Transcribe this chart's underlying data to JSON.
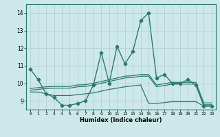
{
  "title": "",
  "xlabel": "Humidex (Indice chaleur)",
  "bg_color": "#cce8e8",
  "grid_color": "#b0cccc",
  "line_color": "#2a7a6a",
  "xlim": [
    -0.5,
    23.5
  ],
  "ylim": [
    8.5,
    14.5
  ],
  "yticks": [
    9,
    10,
    11,
    12,
    13,
    14
  ],
  "xticks": [
    0,
    1,
    2,
    3,
    4,
    5,
    6,
    7,
    8,
    9,
    10,
    11,
    12,
    13,
    14,
    15,
    16,
    17,
    18,
    19,
    20,
    21,
    22,
    23
  ],
  "lines": [
    {
      "x": [
        0,
        1,
        2,
        3,
        4,
        5,
        6,
        7,
        8,
        9,
        10,
        11,
        12,
        13,
        14,
        15,
        16,
        17,
        18,
        19,
        20,
        21,
        22,
        23
      ],
      "y": [
        10.8,
        10.2,
        9.4,
        9.2,
        8.75,
        8.75,
        8.85,
        9.0,
        9.9,
        11.75,
        10.0,
        12.1,
        11.1,
        11.8,
        13.55,
        14.0,
        10.3,
        10.5,
        10.0,
        10.0,
        10.2,
        9.9,
        8.7,
        8.7
      ],
      "marker": "D",
      "markersize": 2.5,
      "linewidth": 1.0
    },
    {
      "x": [
        0,
        1,
        2,
        3,
        4,
        5,
        6,
        7,
        8,
        9,
        10,
        11,
        12,
        13,
        14,
        15,
        16,
        17,
        18,
        19,
        20,
        21,
        22,
        23
      ],
      "y": [
        9.5,
        9.5,
        9.4,
        9.3,
        9.3,
        9.3,
        9.35,
        9.4,
        9.45,
        9.55,
        9.65,
        9.72,
        9.8,
        9.85,
        9.9,
        8.85,
        8.85,
        8.9,
        8.95,
        8.95,
        8.95,
        8.95,
        8.7,
        8.7
      ],
      "marker": null,
      "markersize": 0,
      "linewidth": 0.9
    },
    {
      "x": [
        0,
        1,
        2,
        3,
        4,
        5,
        6,
        7,
        8,
        9,
        10,
        11,
        12,
        13,
        14,
        15,
        16,
        17,
        18,
        19,
        20,
        21,
        22,
        23
      ],
      "y": [
        9.6,
        9.65,
        9.7,
        9.72,
        9.72,
        9.72,
        9.8,
        9.82,
        9.9,
        10.0,
        10.1,
        10.2,
        10.3,
        10.33,
        10.4,
        10.4,
        9.8,
        9.87,
        9.95,
        9.95,
        9.95,
        9.95,
        8.78,
        8.78
      ],
      "marker": null,
      "markersize": 0,
      "linewidth": 0.9
    },
    {
      "x": [
        0,
        1,
        2,
        3,
        4,
        5,
        6,
        7,
        8,
        9,
        10,
        11,
        12,
        13,
        14,
        15,
        16,
        17,
        18,
        19,
        20,
        21,
        22,
        23
      ],
      "y": [
        9.7,
        9.75,
        9.8,
        9.82,
        9.82,
        9.82,
        9.9,
        9.92,
        10.0,
        10.1,
        10.2,
        10.3,
        10.4,
        10.43,
        10.5,
        10.5,
        9.9,
        9.97,
        10.05,
        10.05,
        10.05,
        10.05,
        8.88,
        8.88
      ],
      "marker": null,
      "markersize": 0,
      "linewidth": 0.9
    }
  ]
}
